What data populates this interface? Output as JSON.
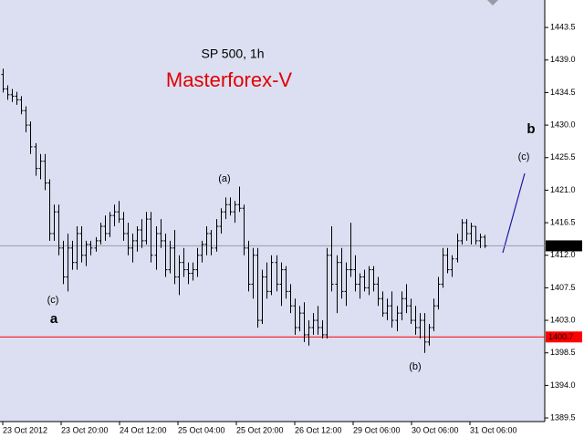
{
  "chart_data": {
    "type": "ohlc",
    "title": "SP 500, 1h",
    "subtitle": "Masterforex-V",
    "color": "#000000",
    "background": "#dcdff2",
    "grid": false,
    "ylim": [
      1389.0,
      1447.3
    ],
    "yticks": [
      1389.5,
      {
        "value": 1394,
        "label": "1394.0"
      },
      1398.5,
      {
        "value": 1403,
        "label": "1403.0"
      },
      1407.5,
      {
        "value": 1412,
        "label": "1412.0"
      },
      1416.5,
      {
        "value": 1421,
        "label": "1421.0"
      },
      1425.5,
      {
        "value": 1430,
        "label": "1430.0"
      },
      1434.5,
      {
        "value": 1439,
        "label": "1439.0"
      },
      1443.5
    ],
    "x_labels": [
      "23 Oct 2012",
      "23 Oct 20:00",
      "24 Oct 12:00",
      "25 Oct 04:00",
      "25 Oct 20:00",
      "26 Oct 12:00",
      "29 Oct 06:00",
      "30 Oct 06:00",
      "31 Oct 06:00"
    ],
    "current_price": 1413.3,
    "level": 1400.7,
    "level_color": "#ff0000",
    "annotations": [
      "(a)",
      "(b)",
      "(c)",
      "(c)",
      "a",
      "b"
    ],
    "ohlc": [
      [
        1437,
        1437.8,
        1434.5,
        1435
      ],
      [
        1435,
        1435.5,
        1433.5,
        1434.2
      ],
      [
        1434.2,
        1435,
        1433.2,
        1434
      ],
      [
        1434,
        1434.6,
        1432.8,
        1433.5
      ],
      [
        1433.5,
        1434,
        1431.5,
        1432
      ],
      [
        1432,
        1432.6,
        1429,
        1430
      ],
      [
        1430,
        1430.5,
        1426,
        1427
      ],
      [
        1427,
        1427.5,
        1423,
        1424
      ],
      [
        1424,
        1426,
        1422.5,
        1425
      ],
      [
        1425,
        1426,
        1421,
        1422
      ],
      [
        1422,
        1422.5,
        1414,
        1415
      ],
      [
        1415,
        1419,
        1414,
        1418
      ],
      [
        1418,
        1419,
        1412,
        1413
      ],
      [
        1413,
        1414,
        1408,
        1409
      ],
      [
        1409,
        1415,
        1407,
        1413
      ],
      [
        1413,
        1414,
        1410,
        1411
      ],
      [
        1411,
        1416,
        1410,
        1415
      ],
      [
        1415,
        1416,
        1411,
        1412
      ],
      [
        1412,
        1414,
        1410.5,
        1413.5
      ],
      [
        1413.5,
        1414,
        1412,
        1413
      ],
      [
        1413,
        1414.5,
        1412.5,
        1414
      ],
      [
        1414,
        1416.5,
        1413.5,
        1416
      ],
      [
        1416,
        1417.5,
        1414,
        1415
      ],
      [
        1415,
        1418,
        1414.5,
        1417.5
      ],
      [
        1417.5,
        1419,
        1416,
        1418
      ],
      [
        1418,
        1419.5,
        1416.5,
        1417
      ],
      [
        1417,
        1418,
        1414,
        1415
      ],
      [
        1415,
        1416.5,
        1412,
        1413
      ],
      [
        1413,
        1415,
        1411,
        1414
      ],
      [
        1414,
        1416,
        1412.5,
        1415.5
      ],
      [
        1415.5,
        1417,
        1413,
        1414
      ],
      [
        1414,
        1418,
        1413.5,
        1417
      ],
      [
        1417,
        1418,
        1411,
        1412
      ],
      [
        1412,
        1416,
        1410,
        1415
      ],
      [
        1415,
        1417,
        1413,
        1414
      ],
      [
        1414,
        1415,
        1409,
        1410
      ],
      [
        1410,
        1414,
        1409.5,
        1413
      ],
      [
        1413,
        1415.5,
        1408,
        1409
      ],
      [
        1409,
        1412,
        1406.5,
        1411
      ],
      [
        1411,
        1413,
        1409,
        1410
      ],
      [
        1410,
        1411,
        1408,
        1409.5
      ],
      [
        1409.5,
        1411,
        1408.5,
        1410
      ],
      [
        1410,
        1413,
        1409,
        1412
      ],
      [
        1412,
        1414,
        1411,
        1413.5
      ],
      [
        1413.5,
        1416,
        1412,
        1415
      ],
      [
        1415,
        1415.5,
        1412,
        1413
      ],
      [
        1413,
        1417,
        1412.5,
        1416
      ],
      [
        1416,
        1418.5,
        1415,
        1418
      ],
      [
        1418,
        1420,
        1417,
        1419
      ],
      [
        1419,
        1420,
        1417.5,
        1418
      ],
      [
        1418,
        1419.5,
        1416.5,
        1419
      ],
      [
        1419,
        1421.5,
        1418,
        1418.5
      ],
      [
        1418.5,
        1419,
        1412,
        1413
      ],
      [
        1413,
        1414,
        1407,
        1408
      ],
      [
        1408,
        1413,
        1406,
        1412
      ],
      [
        1412,
        1413,
        1402,
        1403
      ],
      [
        1403,
        1410,
        1402.5,
        1409
      ],
      [
        1409,
        1411,
        1406,
        1407
      ],
      [
        1407,
        1412,
        1406.5,
        1411
      ],
      [
        1411,
        1412,
        1407,
        1408
      ],
      [
        1408,
        1411,
        1405,
        1410
      ],
      [
        1410,
        1410.5,
        1406,
        1407
      ],
      [
        1407,
        1408,
        1404,
        1405
      ],
      [
        1405,
        1406,
        1401,
        1402
      ],
      [
        1402,
        1405,
        1401.5,
        1404
      ],
      [
        1404,
        1405.5,
        1400,
        1401
      ],
      [
        1401,
        1403,
        1399.5,
        1402
      ],
      [
        1402,
        1404,
        1401,
        1403
      ],
      [
        1403,
        1405,
        1401,
        1402
      ],
      [
        1402,
        1403,
        1400.5,
        1401
      ],
      [
        1401,
        1413,
        1400.5,
        1412
      ],
      [
        1412,
        1416,
        1407,
        1408
      ],
      [
        1408,
        1412,
        1404,
        1411
      ],
      [
        1411,
        1413,
        1406,
        1407
      ],
      [
        1407,
        1411,
        1405,
        1410
      ],
      [
        1410,
        1416.5,
        1409,
        1410
      ],
      [
        1410,
        1412,
        1407,
        1408
      ],
      [
        1408,
        1409.5,
        1406,
        1409
      ],
      [
        1409,
        1410,
        1407,
        1407.5
      ],
      [
        1407.5,
        1410.5,
        1406.5,
        1410
      ],
      [
        1410,
        1410.5,
        1407,
        1408
      ],
      [
        1408,
        1409,
        1405,
        1406
      ],
      [
        1406,
        1407,
        1403.5,
        1404
      ],
      [
        1404,
        1406,
        1403,
        1405
      ],
      [
        1405,
        1407,
        1402,
        1403
      ],
      [
        1403,
        1405,
        1401.5,
        1404
      ],
      [
        1404,
        1407,
        1403,
        1406
      ],
      [
        1406,
        1408,
        1404,
        1405
      ],
      [
        1405,
        1406,
        1402.5,
        1403
      ],
      [
        1403,
        1405,
        1401,
        1402
      ],
      [
        1402,
        1404,
        1400.5,
        1403
      ],
      [
        1403,
        1404,
        1398.5,
        1400
      ],
      [
        1400,
        1402.5,
        1399.5,
        1402
      ],
      [
        1402,
        1406,
        1401.5,
        1405
      ],
      [
        1405,
        1409,
        1404.5,
        1408
      ],
      [
        1408,
        1413,
        1407.5,
        1412
      ],
      [
        1412,
        1413,
        1409.5,
        1410
      ],
      [
        1410,
        1412,
        1409,
        1411.5
      ],
      [
        1411.5,
        1415,
        1411,
        1414
      ],
      [
        1414,
        1417,
        1413.5,
        1416.5
      ],
      [
        1416.5,
        1417,
        1414,
        1415
      ],
      [
        1415,
        1416.5,
        1413.5,
        1416
      ],
      [
        1416,
        1416,
        1413.5,
        1414
      ],
      [
        1414,
        1415,
        1413,
        1414.5
      ],
      [
        1414.5,
        1414.8,
        1413,
        1413.3
      ]
    ]
  }
}
